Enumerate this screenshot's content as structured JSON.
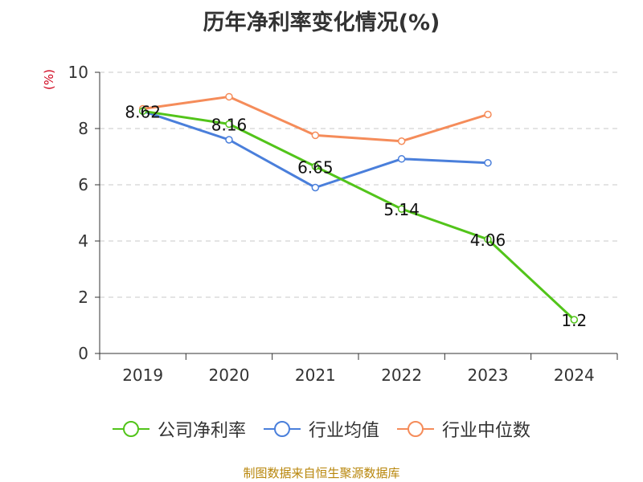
{
  "chart_data": {
    "type": "line",
    "title": "历年净利率变化情况(%)",
    "ylabel": "(%)",
    "xlabel": "",
    "categories": [
      "2019",
      "2020",
      "2021",
      "2022",
      "2023",
      "2024"
    ],
    "ylim": [
      0,
      10
    ],
    "yticks": [
      0,
      2,
      4,
      6,
      8,
      10
    ],
    "grid": true,
    "legend_position": "bottom",
    "series": [
      {
        "name": "公司净利率",
        "color": "#52c41a",
        "values": [
          8.62,
          8.16,
          6.65,
          5.14,
          4.06,
          1.2
        ],
        "labels": [
          "8.62",
          "8.16",
          "6.65",
          "5.14",
          "4.06",
          "1.2"
        ]
      },
      {
        "name": "行业均值",
        "color": "#4a7fdb",
        "values": [
          8.62,
          7.6,
          5.9,
          6.92,
          6.78,
          null
        ]
      },
      {
        "name": "行业中位数",
        "color": "#f58c5a",
        "values": [
          8.7,
          9.13,
          7.76,
          7.55,
          8.5,
          null
        ]
      }
    ],
    "source": "制图数据来自恒生聚源数据库"
  }
}
